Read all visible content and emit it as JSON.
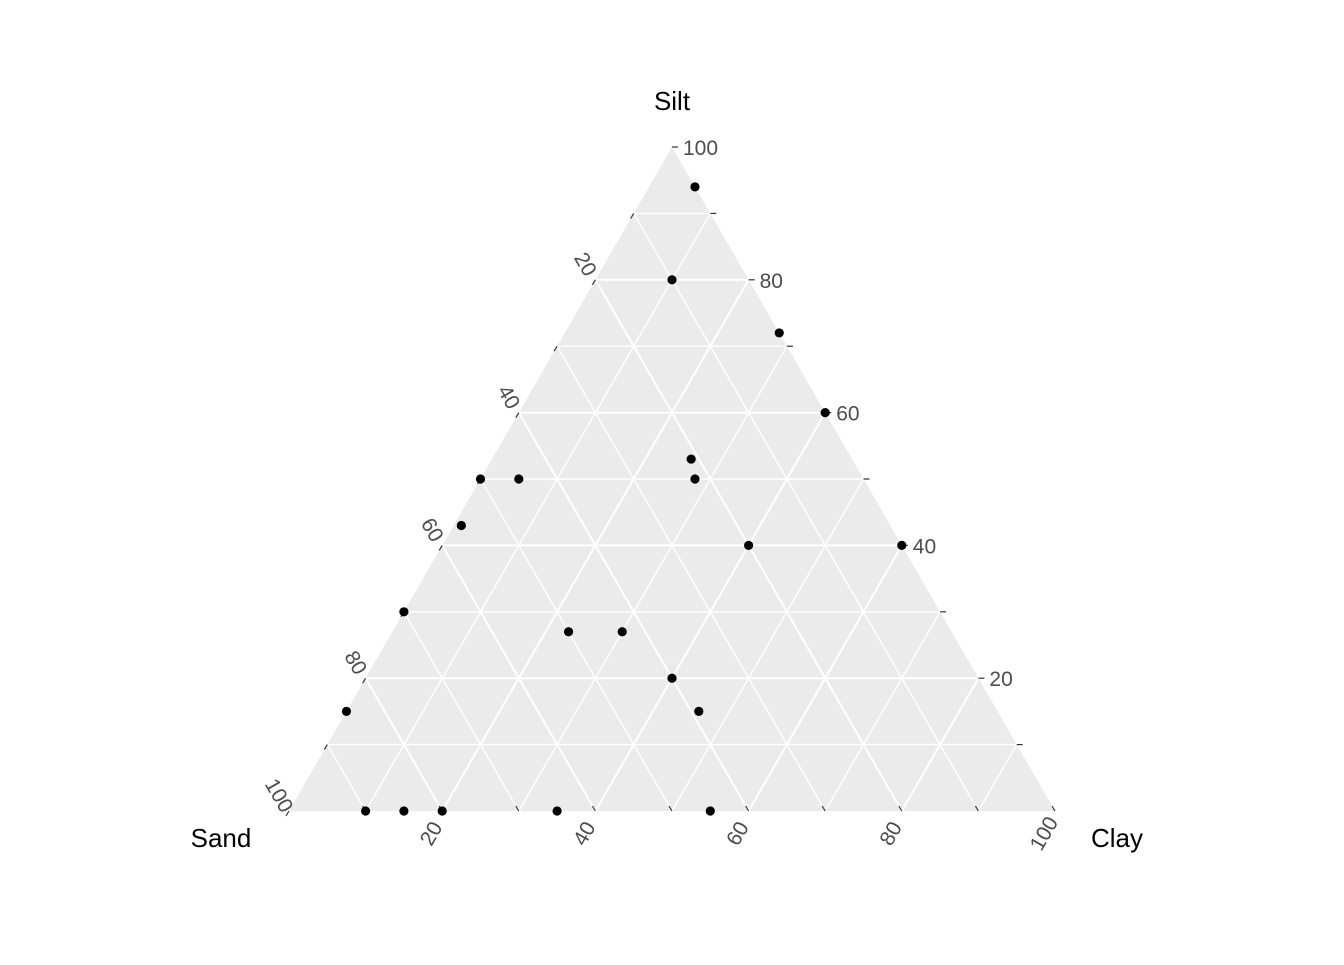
{
  "chart_data": {
    "type": "scatter",
    "subtype": "ternary",
    "axes": {
      "top": "Silt",
      "left": "Sand",
      "right": "Clay"
    },
    "axis_range": [
      0,
      100
    ],
    "major_ticks": [
      20,
      40,
      60,
      80,
      100
    ],
    "tick_labels": [
      "20",
      "40",
      "60",
      "80",
      "100"
    ],
    "grid": true,
    "panel_color": "#ebebeb",
    "point_color": "#000000",
    "points": [
      {
        "Sand": 0,
        "Silt": 94,
        "Clay": 6
      },
      {
        "Sand": 10,
        "Silt": 80,
        "Clay": 10
      },
      {
        "Sand": 0,
        "Silt": 72,
        "Clay": 28
      },
      {
        "Sand": 0,
        "Silt": 60,
        "Clay": 40
      },
      {
        "Sand": 21,
        "Silt": 53,
        "Clay": 26
      },
      {
        "Sand": 22,
        "Silt": 50,
        "Clay": 28
      },
      {
        "Sand": 50,
        "Silt": 50,
        "Clay": 0
      },
      {
        "Sand": 45,
        "Silt": 50,
        "Clay": 5
      },
      {
        "Sand": 56,
        "Silt": 43,
        "Clay": 1
      },
      {
        "Sand": 20,
        "Silt": 40,
        "Clay": 40
      },
      {
        "Sand": 0,
        "Silt": 40,
        "Clay": 60
      },
      {
        "Sand": 70,
        "Silt": 30,
        "Clay": 0
      },
      {
        "Sand": 50,
        "Silt": 27,
        "Clay": 23
      },
      {
        "Sand": 43,
        "Silt": 27,
        "Clay": 30
      },
      {
        "Sand": 40,
        "Silt": 20,
        "Clay": 40
      },
      {
        "Sand": 39,
        "Silt": 15,
        "Clay": 46
      },
      {
        "Sand": 85,
        "Silt": 15,
        "Clay": 0
      },
      {
        "Sand": 90,
        "Silt": 0,
        "Clay": 10
      },
      {
        "Sand": 85,
        "Silt": 0,
        "Clay": 15
      },
      {
        "Sand": 80,
        "Silt": 0,
        "Clay": 20
      },
      {
        "Sand": 65,
        "Silt": 0,
        "Clay": 35
      },
      {
        "Sand": 45,
        "Silt": 0,
        "Clay": 55
      }
    ]
  }
}
